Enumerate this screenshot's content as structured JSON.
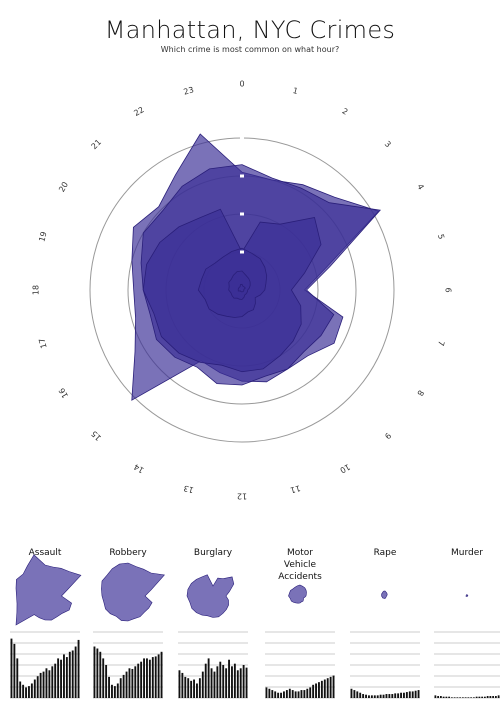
{
  "header": {
    "title": "Manhattan, NYC Crimes",
    "subtitle": "Which crime is most common on what hour?"
  },
  "colors": {
    "fill": "#3b2f96",
    "fill_opacity": 0.68,
    "stroke": "#2a1f7a",
    "ring": "#999999"
  },
  "chart_data": [
    {
      "type": "radar",
      "title": "Manhattan, NYC Crimes",
      "subtitle": "Which crime is most common on what hour?",
      "categories": [
        "0",
        "1",
        "2",
        "3",
        "4",
        "5",
        "6",
        "7",
        "8",
        "9",
        "10",
        "11",
        "12",
        "13",
        "14",
        "15",
        "16",
        "17",
        "18",
        "19",
        "20",
        "21",
        "22",
        "23"
      ],
      "rmax": 100,
      "rings": [
        20,
        40,
        60,
        80
      ],
      "series": [
        {
          "name": "Assault",
          "values": [
            62,
            60,
            64,
            69,
            83,
            46,
            33,
            55,
            56,
            49,
            48,
            50,
            48,
            45,
            43,
            82,
            65,
            58,
            57,
            60,
            66,
            62,
            70,
            85
          ]
        },
        {
          "name": "Robbery",
          "values": [
            66,
            61,
            62,
            65,
            84,
            48,
            34,
            50,
            48,
            46,
            48,
            47,
            50,
            51,
            47,
            50,
            52,
            50,
            52,
            55,
            60,
            59,
            63,
            66
          ]
        },
        {
          "name": "Burglary",
          "values": [
            20,
            37,
            40,
            54,
            48,
            34,
            26,
            32,
            36,
            38,
            40,
            43,
            43,
            41,
            44,
            47,
            49,
            48,
            52,
            52,
            50,
            47,
            44,
            44
          ]
        },
        {
          "name": "Motor Vehicle Accidents",
          "values": [
            22,
            20,
            19,
            17,
            15,
            13,
            12,
            10,
            8,
            10,
            12,
            12,
            14,
            15,
            16,
            18,
            20,
            20,
            23,
            22,
            22,
            20,
            20,
            21
          ]
        },
        {
          "name": "Rape",
          "values": [
            10,
            8,
            7,
            6,
            5,
            4,
            3,
            3,
            3,
            3,
            3,
            4,
            5,
            5,
            5,
            6,
            6,
            6,
            7,
            7,
            8,
            8,
            9,
            10
          ]
        },
        {
          "name": "Murder",
          "values": [
            3,
            2,
            2,
            2,
            2,
            1,
            1,
            1,
            1,
            1,
            1,
            1,
            1,
            1,
            1,
            1,
            1,
            2,
            2,
            2,
            2,
            2,
            2,
            3
          ]
        }
      ]
    },
    {
      "type": "bar",
      "panels": [
        {
          "name": "Assault",
          "values": [
            90,
            82,
            60,
            25,
            20,
            16,
            18,
            22,
            28,
            33,
            38,
            40,
            45,
            42,
            48,
            52,
            60,
            58,
            66,
            62,
            70,
            72,
            78,
            88
          ]
        },
        {
          "name": "Robbery",
          "values": [
            78,
            75,
            70,
            60,
            50,
            32,
            20,
            18,
            22,
            30,
            35,
            40,
            45,
            44,
            48,
            52,
            55,
            60,
            60,
            58,
            62,
            63,
            66,
            70
          ]
        },
        {
          "name": "Burglary",
          "values": [
            42,
            38,
            32,
            30,
            26,
            28,
            22,
            30,
            40,
            52,
            60,
            45,
            40,
            48,
            55,
            50,
            45,
            58,
            48,
            52,
            42,
            45,
            50,
            46
          ]
        },
        {
          "name": "Motor Vehicle Accidents",
          "values": [
            16,
            14,
            12,
            10,
            8,
            8,
            10,
            12,
            14,
            12,
            10,
            10,
            12,
            12,
            14,
            16,
            20,
            22,
            24,
            26,
            28,
            30,
            32,
            34
          ]
        },
        {
          "name": "Rape",
          "values": [
            14,
            12,
            10,
            8,
            6,
            5,
            4,
            4,
            4,
            4,
            5,
            5,
            6,
            6,
            6,
            7,
            7,
            8,
            8,
            9,
            10,
            10,
            11,
            12
          ]
        },
        {
          "name": "Murder",
          "values": [
            4,
            3,
            3,
            2,
            2,
            2,
            1,
            1,
            1,
            1,
            1,
            1,
            1,
            1,
            1,
            2,
            2,
            2,
            2,
            3,
            3,
            3,
            3,
            4
          ]
        }
      ]
    }
  ]
}
